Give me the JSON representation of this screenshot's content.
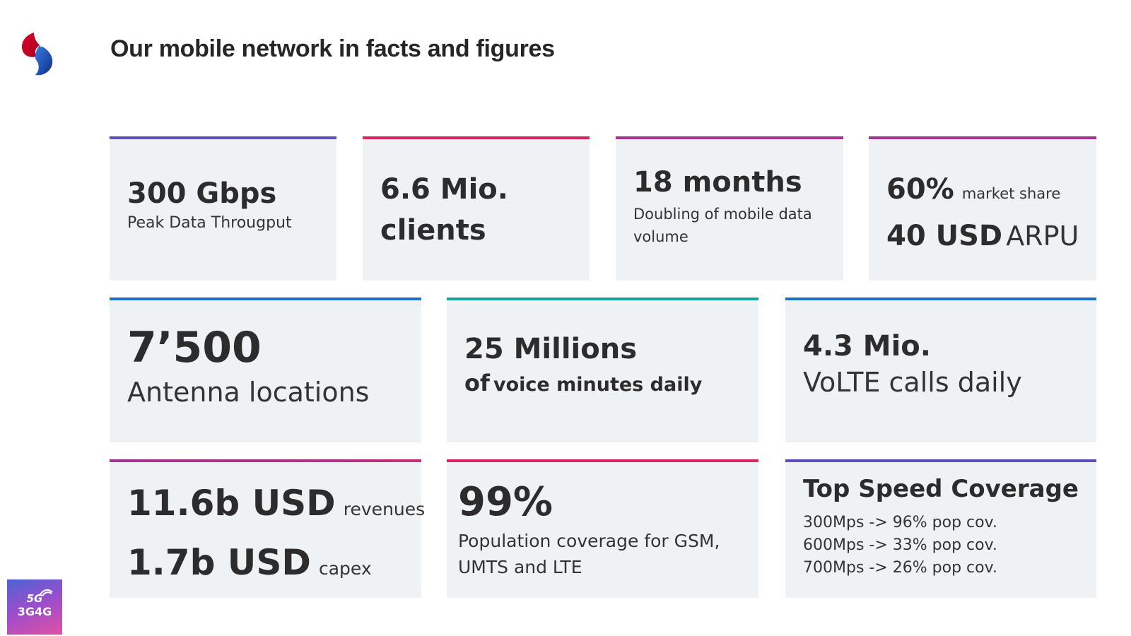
{
  "page": {
    "title": "Our mobile network in facts and figures"
  },
  "colors": {
    "card_bg": "#eff2f5",
    "bar_purple_blue": "#5b4fc0",
    "bar_pink": "#e0235e",
    "bar_magenta": "#a5318f",
    "bar_blue": "#1e6fc8",
    "bar_teal": "#17a2a0"
  },
  "cards": {
    "throughput": {
      "value": "300 Gbps",
      "label": "Peak Data Througput"
    },
    "clients": {
      "line1": "6.6 Mio.",
      "line2": "clients"
    },
    "doubling": {
      "value": "18 months",
      "label_line1": "Doubling of mobile data",
      "label_line2": "volume"
    },
    "market": {
      "share_value": "60%",
      "share_label": "market share",
      "arpu_value": "40 USD",
      "arpu_label": "ARPU"
    },
    "antennas": {
      "value": "7’500",
      "label": "Antenna locations"
    },
    "voice": {
      "value": "25 Millions",
      "label_of": "of",
      "label_rest": "voice minutes daily"
    },
    "volte": {
      "value": "4.3 Mio.",
      "label": "VoLTE calls daily"
    },
    "finance": {
      "revenue_value": "11.6b USD",
      "revenue_label": "revenues",
      "capex_value": "1.7b USD",
      "capex_label": "capex"
    },
    "population": {
      "value": "99%",
      "label_line1": "Population coverage for GSM,",
      "label_line2": "UMTS and LTE"
    },
    "speed": {
      "title": "Top Speed Coverage",
      "lines": [
        "300Mps -> 96% pop cov.",
        "600Mps -> 33% pop cov.",
        "700Mps -> 26% pop cov."
      ]
    }
  },
  "badge": {
    "top": "5G",
    "bottom": "3G4G"
  },
  "icons": {
    "logo": "swisscom-logo-icon",
    "badge_wave": "signal-wave-icon"
  }
}
